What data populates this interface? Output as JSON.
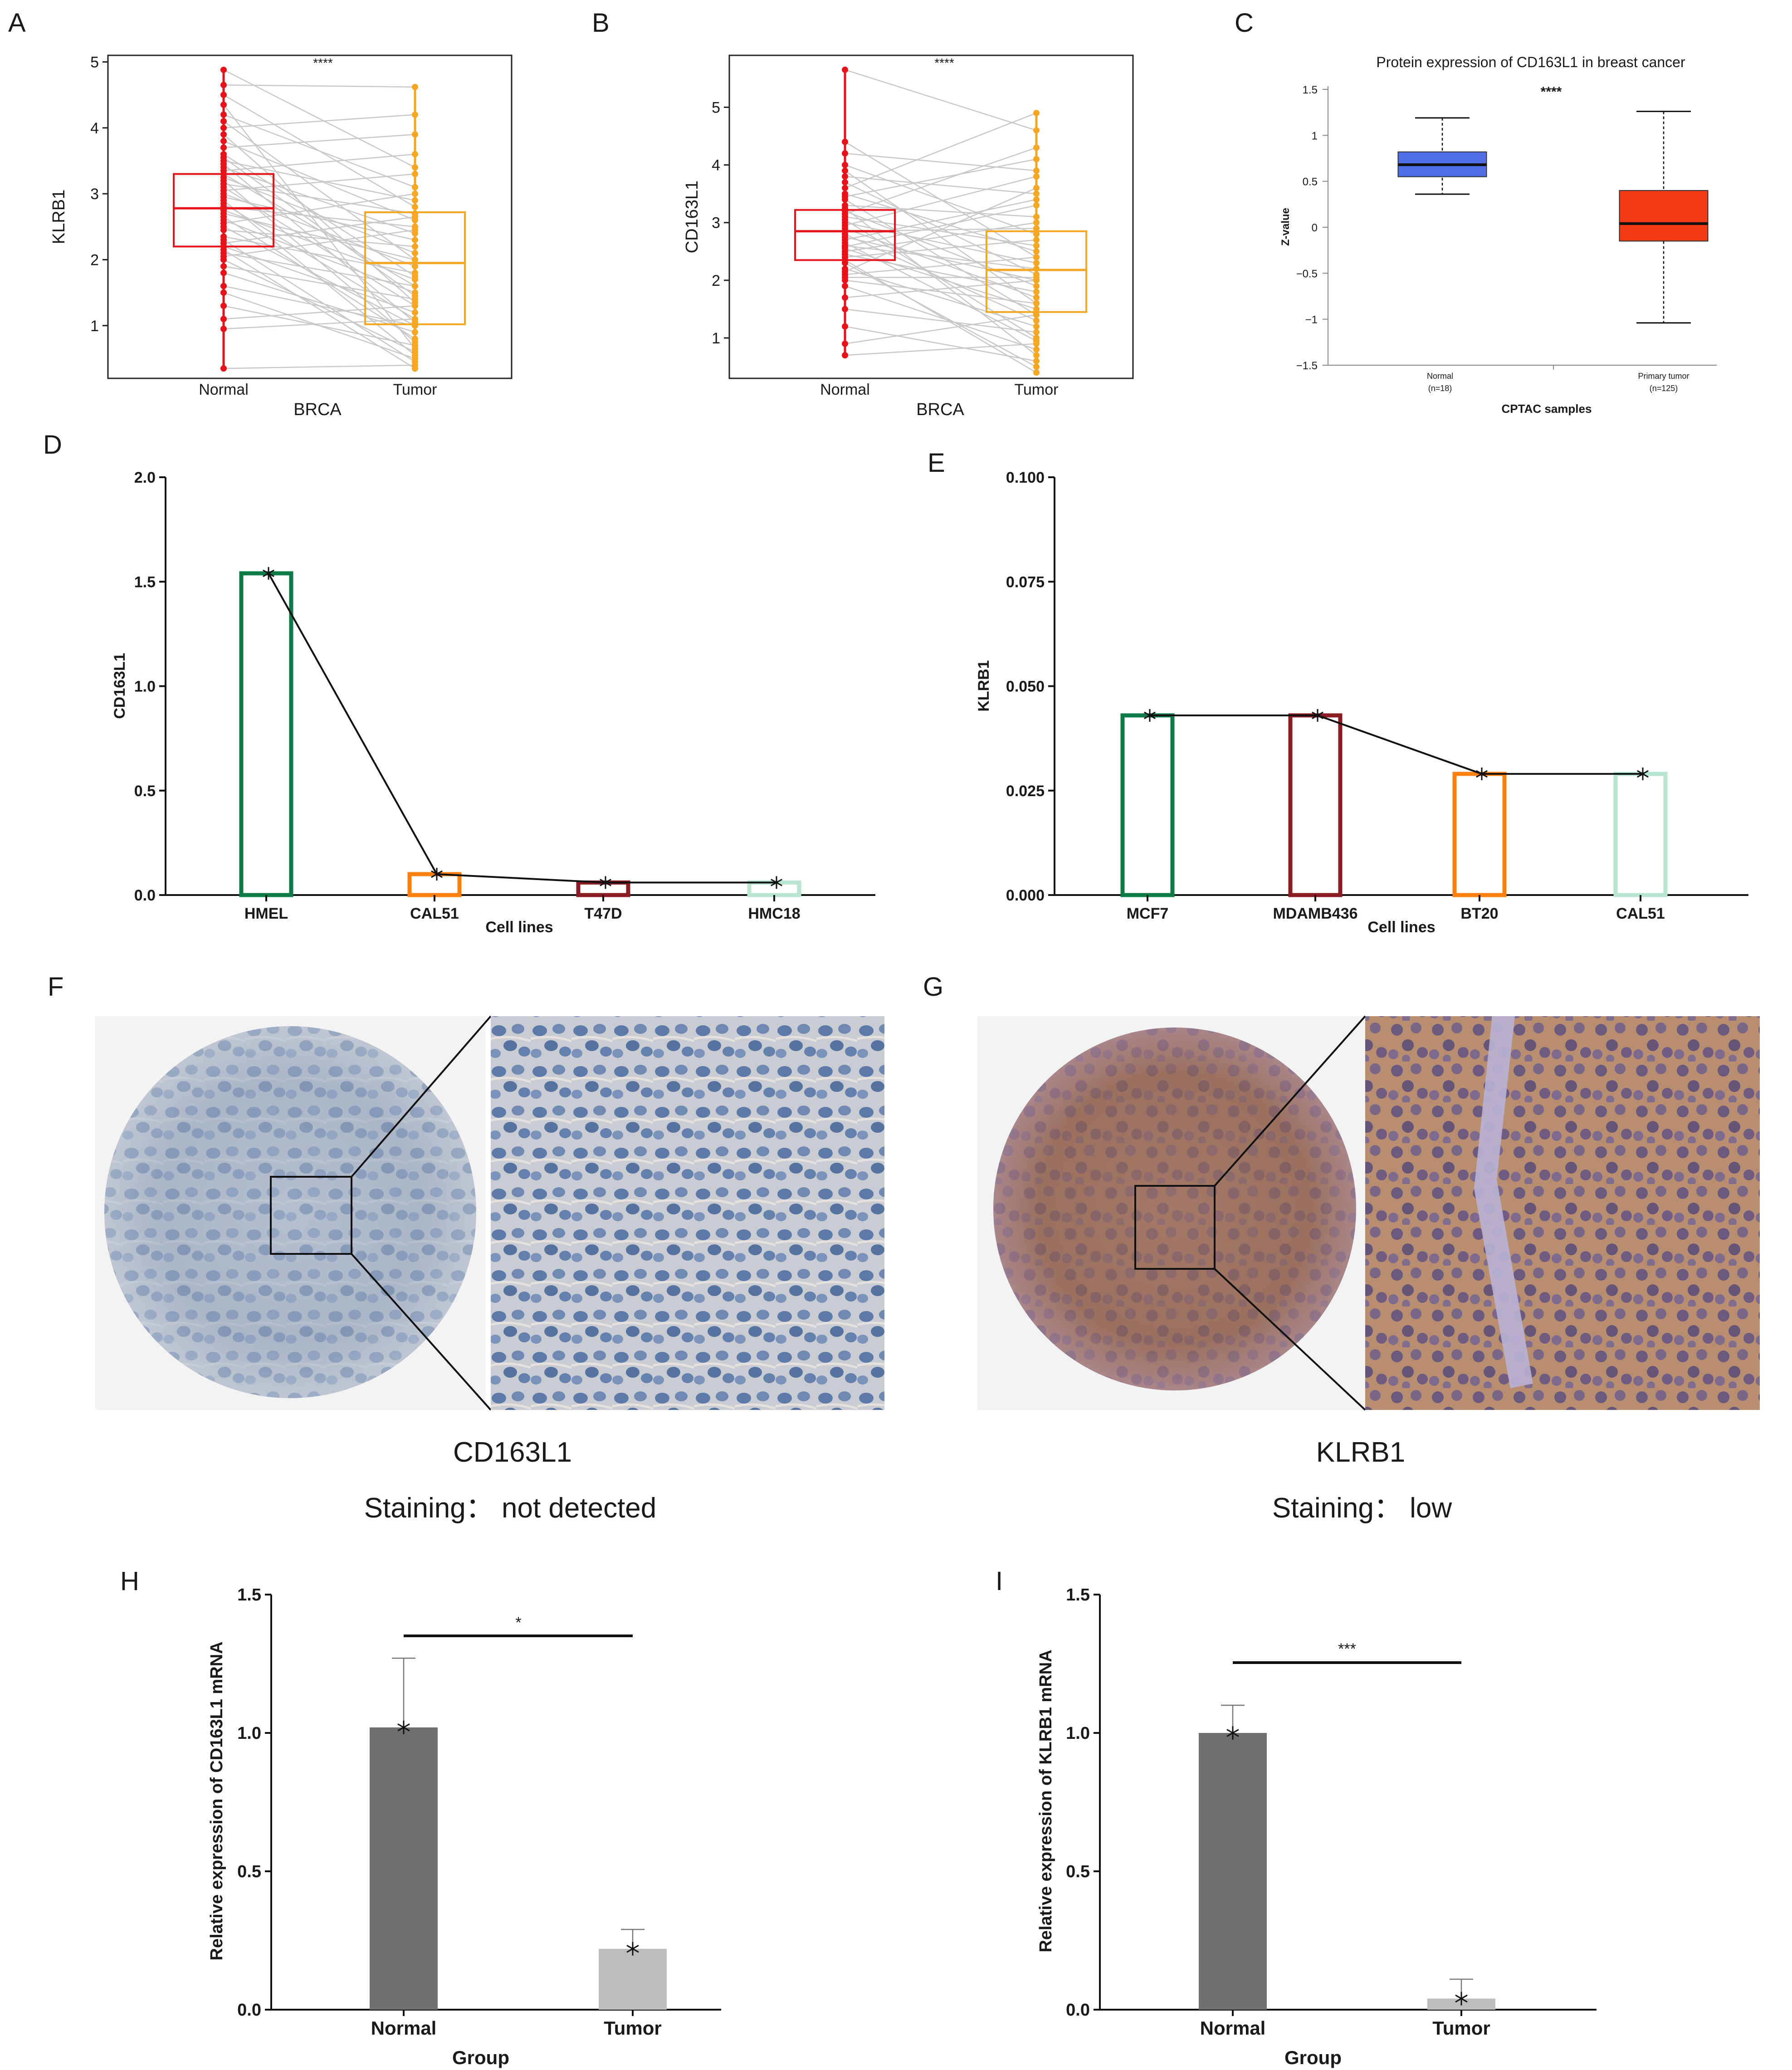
{
  "panel_letters": {
    "A": "A",
    "B": "B",
    "C": "C",
    "D": "D",
    "E": "E",
    "F": "F",
    "G": "G",
    "H": "H",
    "I": "I"
  },
  "colors": {
    "normal_red": "#e8121a",
    "tumor_orange": "#f5a623",
    "pair_line": "#c8c8c8",
    "box_blue": "#4f6ee6",
    "box_red": "#f23a14",
    "green": "#0e7a46",
    "darkred": "#8b1c23",
    "orange": "#ff7f0e",
    "mint": "#b7e5d0",
    "bar_dark": "#6f6f6f",
    "bar_light": "#bdbdbd"
  },
  "chart_data": [
    {
      "panel": "A",
      "type": "box-paired",
      "xlabel": "BRCA",
      "ylabel": "KLRB1",
      "categories": [
        "Normal",
        "Tumor"
      ],
      "yticks": [
        "1",
        "2",
        "3",
        "4",
        "5"
      ],
      "ylim": [
        0.2,
        5.1
      ],
      "significance": "****",
      "boxes": [
        {
          "group": "Normal",
          "q1": 2.2,
          "median": 2.78,
          "q3": 3.3,
          "min": 0.35,
          "max": 4.88
        },
        {
          "group": "Tumor",
          "q1": 1.02,
          "median": 1.95,
          "q3": 2.72,
          "min": 0.3,
          "max": 4.62
        }
      ],
      "pairs": [
        [
          0.35,
          0.4
        ],
        [
          0.95,
          1.1
        ],
        [
          1.1,
          1.3
        ],
        [
          1.3,
          0.7
        ],
        [
          1.5,
          0.5
        ],
        [
          1.6,
          1.0
        ],
        [
          1.8,
          0.9
        ],
        [
          1.9,
          1.4
        ],
        [
          2.0,
          0.6
        ],
        [
          2.1,
          1.6
        ],
        [
          2.2,
          1.2
        ],
        [
          2.3,
          0.45
        ],
        [
          2.35,
          1.8
        ],
        [
          2.45,
          2.2
        ],
        [
          2.5,
          1.0
        ],
        [
          2.55,
          3.0
        ],
        [
          2.6,
          1.5
        ],
        [
          2.65,
          0.8
        ],
        [
          2.7,
          2.0
        ],
        [
          2.75,
          1.7
        ],
        [
          2.8,
          2.5
        ],
        [
          2.85,
          1.1
        ],
        [
          2.9,
          0.55
        ],
        [
          2.95,
          2.3
        ],
        [
          3.0,
          1.9
        ],
        [
          3.05,
          3.3
        ],
        [
          3.1,
          1.3
        ],
        [
          3.15,
          2.7
        ],
        [
          3.2,
          0.75
        ],
        [
          3.25,
          2.1
        ],
        [
          3.3,
          1.6
        ],
        [
          3.35,
          3.6
        ],
        [
          3.4,
          2.4
        ],
        [
          3.45,
          1.05
        ],
        [
          3.5,
          2.9
        ],
        [
          3.6,
          1.75
        ],
        [
          3.7,
          3.9
        ],
        [
          3.8,
          2.6
        ],
        [
          3.9,
          1.35
        ],
        [
          4.0,
          4.2
        ],
        [
          4.1,
          2.0
        ],
        [
          4.2,
          3.1
        ],
        [
          4.35,
          0.65
        ],
        [
          4.5,
          2.8
        ],
        [
          4.65,
          4.62
        ],
        [
          4.88,
          3.4
        ],
        [
          2.25,
          2.65
        ],
        [
          2.15,
          0.35
        ],
        [
          3.55,
          1.45
        ],
        [
          2.05,
          2.45
        ]
      ]
    },
    {
      "panel": "B",
      "type": "box-paired",
      "xlabel": "BRCA",
      "ylabel": "CD163L1",
      "categories": [
        "Normal",
        "Tumor"
      ],
      "yticks": [
        "1",
        "2",
        "3",
        "4",
        "5"
      ],
      "ylim": [
        0.3,
        5.9
      ],
      "significance": "****",
      "boxes": [
        {
          "group": "Normal",
          "q1": 2.35,
          "median": 2.85,
          "q3": 3.22,
          "min": 0.7,
          "max": 5.65
        },
        {
          "group": "Tumor",
          "q1": 1.45,
          "median": 2.18,
          "q3": 2.85,
          "min": 0.4,
          "max": 4.95
        }
      ],
      "pairs": [
        [
          0.7,
          0.9
        ],
        [
          0.9,
          1.4
        ],
        [
          1.2,
          0.6
        ],
        [
          1.5,
          1.1
        ],
        [
          1.7,
          2.0
        ],
        [
          1.9,
          0.8
        ],
        [
          2.0,
          1.6
        ],
        [
          2.1,
          2.4
        ],
        [
          2.2,
          1.2
        ],
        [
          2.3,
          0.5
        ],
        [
          2.4,
          2.7
        ],
        [
          2.45,
          1.8
        ],
        [
          2.5,
          3.0
        ],
        [
          2.55,
          1.5
        ],
        [
          2.6,
          2.2
        ],
        [
          2.65,
          0.95
        ],
        [
          2.7,
          3.4
        ],
        [
          2.75,
          2.0
        ],
        [
          2.8,
          1.3
        ],
        [
          2.85,
          2.9
        ],
        [
          2.9,
          1.7
        ],
        [
          2.95,
          3.8
        ],
        [
          3.0,
          2.3
        ],
        [
          3.05,
          1.0
        ],
        [
          3.1,
          2.6
        ],
        [
          3.15,
          4.3
        ],
        [
          3.2,
          1.9
        ],
        [
          3.3,
          3.1
        ],
        [
          3.4,
          1.4
        ],
        [
          3.5,
          2.5
        ],
        [
          3.6,
          4.9
        ],
        [
          3.7,
          2.1
        ],
        [
          3.8,
          3.5
        ],
        [
          3.9,
          1.6
        ],
        [
          4.0,
          2.8
        ],
        [
          4.2,
          3.9
        ],
        [
          4.4,
          2.4
        ],
        [
          5.65,
          4.6
        ],
        [
          2.35,
          0.4
        ],
        [
          2.58,
          3.3
        ],
        [
          3.25,
          0.7
        ],
        [
          2.05,
          2.05
        ],
        [
          3.45,
          4.1
        ],
        [
          2.15,
          3.6
        ]
      ]
    },
    {
      "panel": "C",
      "type": "box",
      "title": "Protein expression of CD163L1 in breast cancer",
      "xlabel": "CPTAC samples",
      "ylabel": "Z-value",
      "yticks": [
        "1.5",
        "1",
        "0.5",
        "0",
        "−0.5",
        "−1",
        "−1.5"
      ],
      "ylim": [
        -1.5,
        1.5
      ],
      "significance": "****",
      "categories": [
        "Normal",
        "Primary tumor"
      ],
      "sample_sizes": [
        "(n=18)",
        "(n=125)"
      ],
      "boxes": [
        {
          "group": "Normal",
          "q1": 0.55,
          "median": 0.68,
          "q3": 0.82,
          "min": 0.36,
          "max": 1.19
        },
        {
          "group": "Primary tumor",
          "q1": -0.15,
          "median": 0.04,
          "q3": 0.4,
          "min": -1.04,
          "max": 1.26
        }
      ]
    },
    {
      "panel": "D",
      "type": "bar-line",
      "xlabel": "Cell lines",
      "ylabel": "CD163L1",
      "categories": [
        "HMEL",
        "CAL51",
        "T47D",
        "HMC18"
      ],
      "values": [
        1.54,
        0.1,
        0.06,
        0.06
      ],
      "yticks": [
        "0.0",
        "0.5",
        "1.0",
        "1.5",
        "2.0"
      ],
      "ylim": [
        0,
        2
      ]
    },
    {
      "panel": "E",
      "type": "bar-line",
      "xlabel": "Cell lines",
      "ylabel": "KLRB1",
      "categories": [
        "MCF7",
        "MDAMB436",
        "BT20",
        "CAL51"
      ],
      "values": [
        0.043,
        0.043,
        0.029,
        0.029
      ],
      "yticks": [
        "0.000",
        "0.025",
        "0.050",
        "0.075",
        "0.100"
      ],
      "ylim": [
        0,
        0.1
      ]
    },
    {
      "panel": "H",
      "type": "bar",
      "xlabel": "Group",
      "ylabel": "Relative expression of CD163L1 mRNA",
      "categories": [
        "Normal",
        "Tumor"
      ],
      "values": [
        1.02,
        0.22
      ],
      "errors": [
        0.25,
        0.07
      ],
      "points": [
        1.02,
        0.22
      ],
      "yticks": [
        "0.0",
        "0.5",
        "1.0",
        "1.5"
      ],
      "ylim": [
        0,
        1.5
      ],
      "significance": "*"
    },
    {
      "panel": "I",
      "type": "bar",
      "xlabel": "Group",
      "ylabel": "Relative expression of KLRB1 mRNA",
      "categories": [
        "Normal",
        "Tumor"
      ],
      "values": [
        1.0,
        0.04
      ],
      "errors": [
        0.1,
        0.07
      ],
      "points": [
        1.0,
        0.04
      ],
      "yticks": [
        "0.0",
        "0.5",
        "1.0",
        "1.5"
      ],
      "ylim": [
        0,
        1.5
      ],
      "significance": "***"
    }
  ],
  "ihc": [
    {
      "panel": "F",
      "gene": "CD163L1",
      "staining": "Staining： not detected"
    },
    {
      "panel": "G",
      "gene": "KLRB1",
      "staining": "Staining： low"
    }
  ]
}
